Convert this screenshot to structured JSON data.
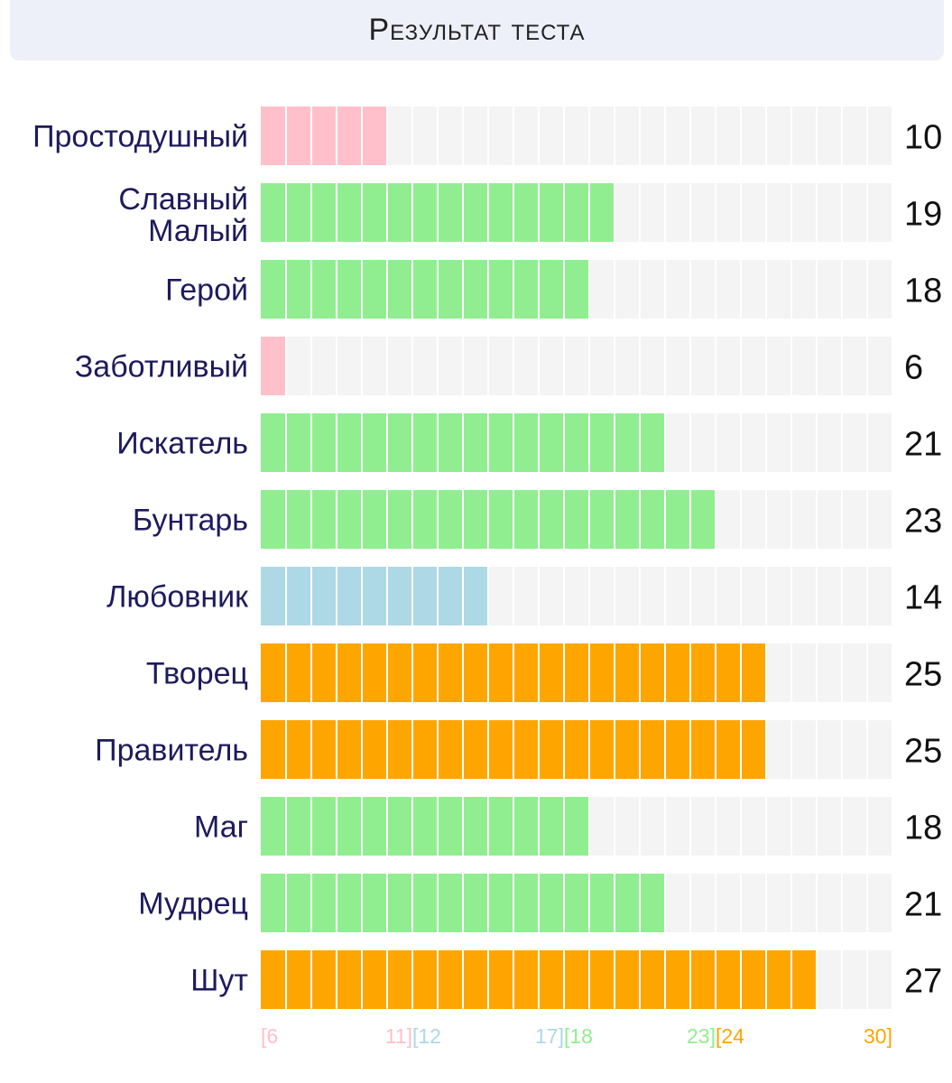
{
  "title": "Результат теста",
  "colors": {
    "pink": "#ffc0cb",
    "blue": "#add8e6",
    "green": "#90ee90",
    "orange": "#ffa500",
    "track": "#f4f4f4"
  },
  "chart_data": {
    "type": "bar",
    "orientation": "horizontal",
    "xlim": [
      6,
      30
    ],
    "grid": true,
    "categories": [
      [
        "Простодушный"
      ],
      [
        "Славный",
        "Малый"
      ],
      [
        "Герой"
      ],
      [
        "Заботливый"
      ],
      [
        "Искатель"
      ],
      [
        "Бунтарь"
      ],
      [
        "Любовник"
      ],
      [
        "Творец"
      ],
      [
        "Правитель"
      ],
      [
        "Маг"
      ],
      [
        "Мудрец"
      ],
      [
        "Шут"
      ]
    ],
    "values": [
      10,
      19,
      18,
      6,
      21,
      23,
      14,
      25,
      25,
      18,
      21,
      27
    ],
    "ranges": [
      {
        "from": 6,
        "to": 11,
        "start_label": "[6",
        "end_label": "11]",
        "color": "#ffc0cb"
      },
      {
        "from": 12,
        "to": 17,
        "start_label": "[12",
        "end_label": "17]",
        "color": "#add8e6"
      },
      {
        "from": 18,
        "to": 23,
        "start_label": "[18",
        "end_label": "23]",
        "color": "#90ee90"
      },
      {
        "from": 24,
        "to": 30,
        "start_label": "[24",
        "end_label": "30]",
        "color": "#ffa500"
      }
    ]
  }
}
